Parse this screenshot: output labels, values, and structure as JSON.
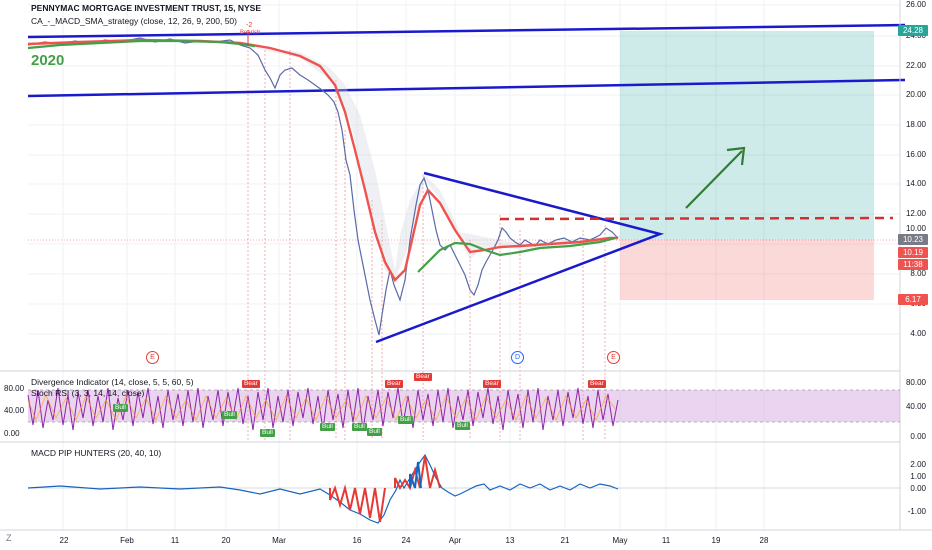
{
  "header": {
    "title": "PENNYMAC MORTGAGE INVESTMENT TRUST, 15, NYSE",
    "strategy": "CA_-_MACD_SMA_strategy (close, 12, 26, 9, 200, 50)",
    "year_label": "2020"
  },
  "price_axis": {
    "ticks": [
      "26.00",
      "24.00",
      "22.00",
      "20.00",
      "18.00",
      "16.00",
      "14.00",
      "12.00",
      "10.00",
      "8.00",
      "6.00",
      "4.00"
    ],
    "badges": [
      {
        "label": "24.28",
        "color": "#26a69a"
      },
      {
        "label": "10.23",
        "color": "#787b86"
      },
      {
        "label": "10.19",
        "color": "#ef5350"
      },
      {
        "label": "11:38",
        "color": "#ef5350"
      },
      {
        "label": "6.17",
        "color": "#ef5350"
      }
    ]
  },
  "time_axis": {
    "ticks": [
      "22",
      "Feb",
      "11",
      "20",
      "Mar",
      "16",
      "24",
      "Apr",
      "13",
      "21",
      "May",
      "11",
      "19",
      "28"
    ]
  },
  "markers": {
    "top_annotation": "-2",
    "short_label": "Bearish",
    "events": [
      "E",
      "D",
      "E"
    ],
    "bull_signal": "Bull",
    "bear_signal": "Bear"
  },
  "indicators": {
    "divergence": {
      "label": "Divergence Indicator (14, close, 5, 5, 60, 5)",
      "stoch_label": "Stoch RSI (3, 3, 14, 14, close)",
      "ticks": [
        "80.00",
        "40.00",
        "0.00"
      ]
    },
    "macd": {
      "label": "MACD PIP HUNTERS (20, 40, 10)",
      "ticks": [
        "2.00",
        "1.00",
        "0.00",
        "-1.00"
      ]
    }
  },
  "footer": {
    "logo_text": "Z"
  },
  "colors": {
    "trendline": "#1a1acc",
    "ma_red": "#ef5350",
    "ma_green": "#43a047",
    "target_zone": "#26a69a",
    "stop_zone": "#ef5350",
    "arrow": "#2e7d32"
  }
}
